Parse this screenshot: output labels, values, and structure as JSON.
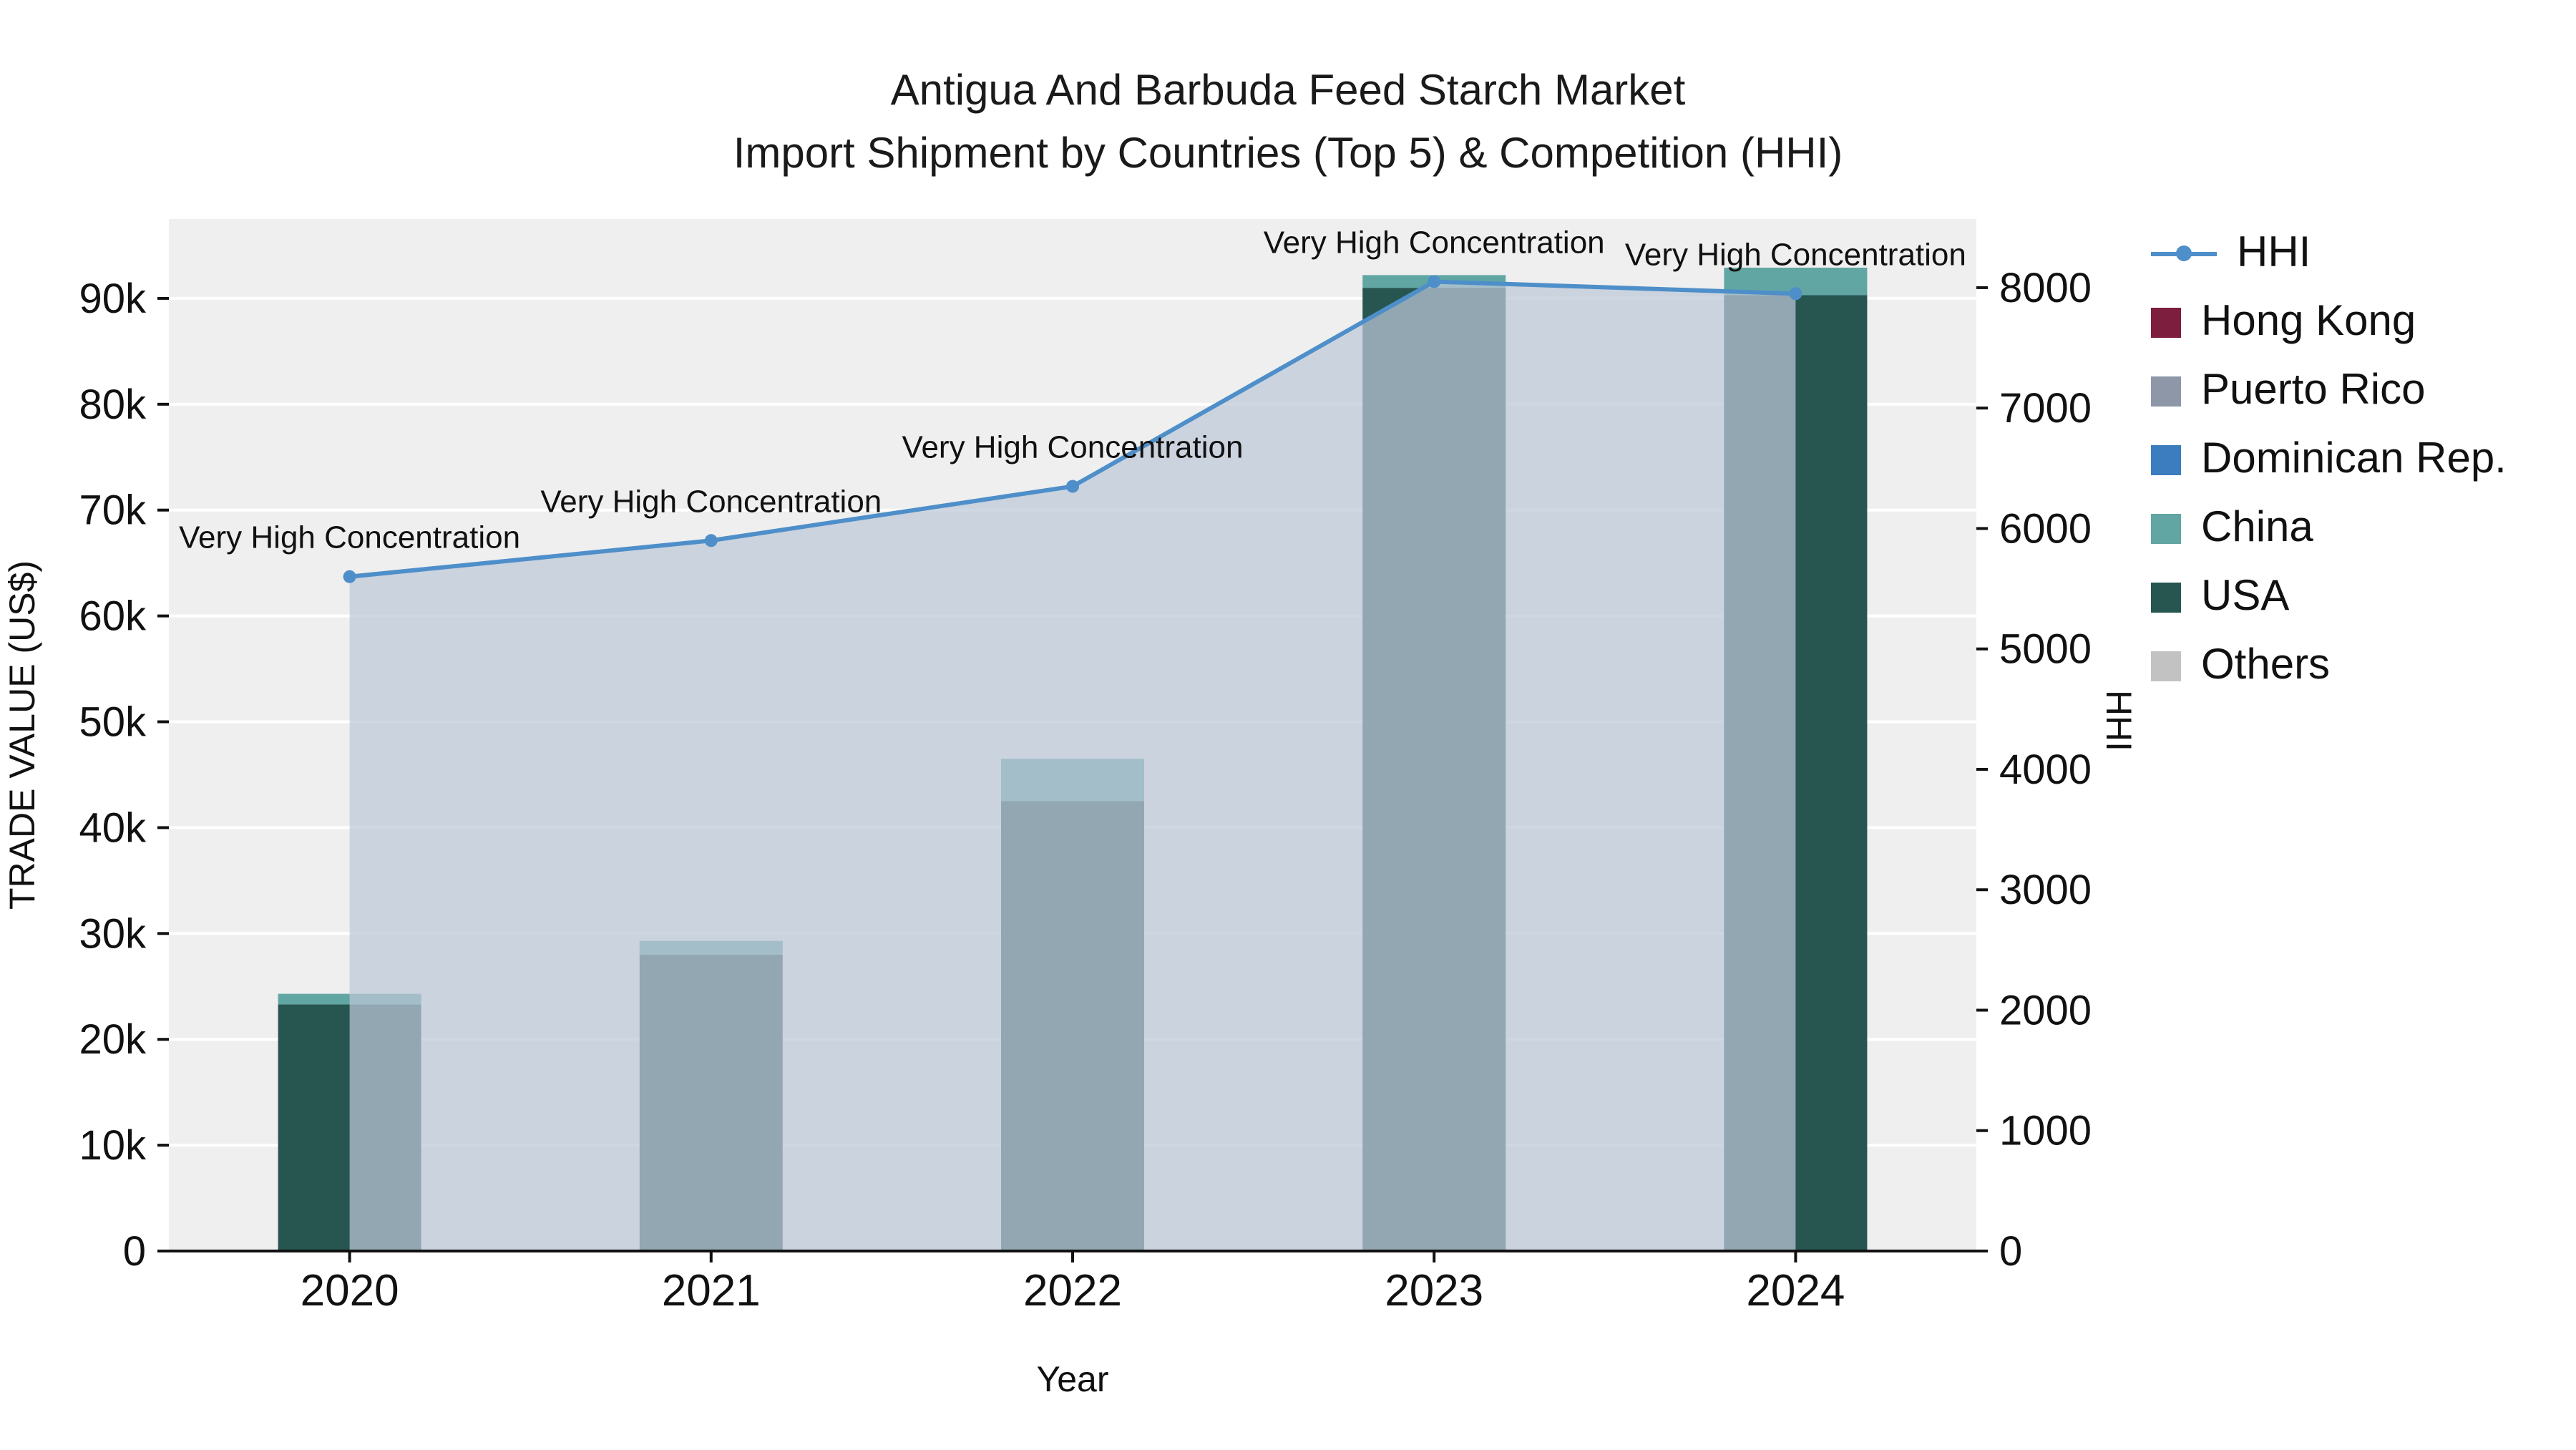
{
  "title": {
    "line1": "Antigua And Barbuda Feed Starch Market",
    "line2": "Import Shipment by Countries (Top 5) & Competition (HHI)"
  },
  "chart_data": {
    "type": "bar+line",
    "categories": [
      "2020",
      "2021",
      "2022",
      "2023",
      "2024"
    ],
    "bar_series": [
      {
        "name": "USA",
        "color": "#275550",
        "values": [
          23300,
          28000,
          42500,
          91000,
          90300
        ]
      },
      {
        "name": "China",
        "color": "#61a6a3",
        "values": [
          1000,
          1300,
          4000,
          1200,
          2600
        ]
      },
      {
        "name": "Dominican Rep.",
        "color": "#3b7dbe",
        "values": [
          0,
          0,
          0,
          0,
          0
        ]
      },
      {
        "name": "Puerto Rico",
        "color": "#8d97a8",
        "values": [
          0,
          0,
          0,
          0,
          0
        ]
      },
      {
        "name": "Hong Kong",
        "color": "#7d1e3f",
        "values": [
          0,
          0,
          0,
          0,
          0
        ]
      },
      {
        "name": "Others",
        "color": "#c2c2c2",
        "values": [
          0,
          0,
          0,
          0,
          0
        ]
      }
    ],
    "line_series": {
      "name": "HHI",
      "axis": "right",
      "color": "#4e8fca",
      "area_fill": "rgba(189,199,216,0.72)",
      "values": [
        5600,
        5900,
        6350,
        8050,
        7950
      ]
    },
    "annotations": [
      "Very High Concentration",
      "Very High Concentration",
      "Very High Concentration",
      "Very High Concentration",
      "Very High Concentration"
    ],
    "left_axis": {
      "title": "TRADE VALUE (US$)",
      "min": 0,
      "max": 97500,
      "ticks": [
        0,
        10000,
        20000,
        30000,
        40000,
        50000,
        60000,
        70000,
        80000,
        90000
      ],
      "tick_labels": [
        "0",
        "10k",
        "20k",
        "30k",
        "40k",
        "50k",
        "60k",
        "70k",
        "80k",
        "90k"
      ]
    },
    "right_axis": {
      "title": "HHI",
      "min": 0,
      "max": 8570,
      "ticks": [
        0,
        1000,
        2000,
        3000,
        4000,
        5000,
        6000,
        7000,
        8000
      ],
      "tick_labels": [
        "0",
        "1000",
        "2000",
        "3000",
        "4000",
        "5000",
        "6000",
        "7000",
        "8000"
      ]
    },
    "x_axis": {
      "title": "Year"
    },
    "plot_background": "#efefef",
    "gridline_color": "#ffffff"
  },
  "legend": {
    "items": [
      {
        "label": "HHI",
        "swatch": "line",
        "color": "#4e8fca"
      },
      {
        "label": "Hong Kong",
        "swatch": "square",
        "color": "#7d1e3f"
      },
      {
        "label": "Puerto Rico",
        "swatch": "square",
        "color": "#8d97a8"
      },
      {
        "label": "Dominican Rep.",
        "swatch": "square",
        "color": "#3b7dbe"
      },
      {
        "label": "China",
        "swatch": "square",
        "color": "#61a6a3"
      },
      {
        "label": "USA",
        "swatch": "square",
        "color": "#275550"
      },
      {
        "label": "Others",
        "swatch": "square",
        "color": "#c2c2c2"
      }
    ]
  }
}
